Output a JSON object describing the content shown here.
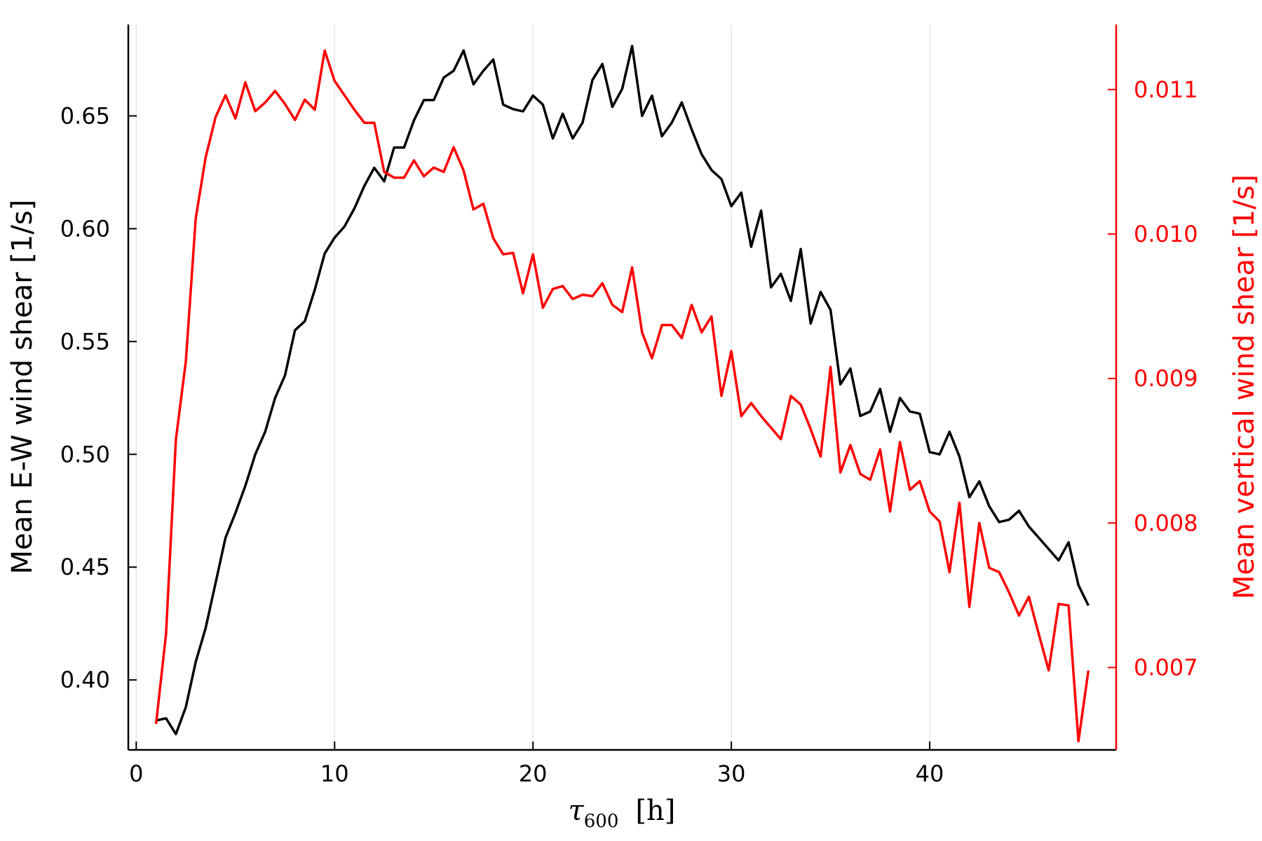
{
  "chart_data": {
    "type": "line",
    "title": "",
    "xlabel": {
      "symbol": "τ",
      "subscript": "600",
      "unit": "[h]"
    },
    "ylabel_left": "Mean E-W wind shear [1/s]",
    "ylabel_right": "Mean vertical wind shear [1/s]",
    "xlim": [
      -0.4,
      49.4
    ],
    "ylim_left": [
      0.369,
      0.6905
    ],
    "ylim_right": [
      0.00643,
      0.01145
    ],
    "xticks": [
      0,
      10,
      20,
      30,
      40
    ],
    "xtick_labels": [
      "0",
      "10",
      "20",
      "30",
      "40"
    ],
    "yticks_left": [
      0.4,
      0.45,
      0.5,
      0.55,
      0.6,
      0.65
    ],
    "ytick_labels_left": [
      "0.40",
      "0.45",
      "0.50",
      "0.55",
      "0.60",
      "0.65"
    ],
    "yticks_right": [
      0.007,
      0.008,
      0.009,
      0.01,
      0.011
    ],
    "ytick_labels_right": [
      "0.007",
      "0.008",
      "0.009",
      "0.010",
      "0.011"
    ],
    "grid": true,
    "colors": {
      "left_series": "#000000",
      "right_series": "#ff0000",
      "grid": "#e6e6e6",
      "axis_left": "#000000",
      "axis_right": "#ff0000"
    },
    "series": [
      {
        "axis": "left",
        "color": "#000000",
        "x": [
          1,
          1.5,
          2,
          2.5,
          3,
          3.5,
          4,
          4.5,
          5,
          5.5,
          6,
          6.5,
          7,
          7.5,
          8,
          8.5,
          9,
          9.5,
          10,
          10.5,
          11,
          11.5,
          12,
          12.5,
          13,
          13.5,
          14,
          14.5,
          15,
          15.5,
          16,
          16.5,
          17,
          17.5,
          18,
          18.5,
          19,
          19.5,
          20,
          20.5,
          21,
          21.5,
          22,
          22.5,
          23,
          23.5,
          24,
          24.5,
          25,
          25.5,
          26,
          26.5,
          27,
          27.5,
          28,
          28.5,
          29,
          29.5,
          30,
          30.5,
          31,
          31.5,
          32,
          32.5,
          33,
          33.5,
          34,
          34.5,
          35,
          35.5,
          36,
          36.5,
          37,
          37.5,
          38,
          38.5,
          39,
          39.5,
          40,
          40.5,
          41,
          41.5,
          42,
          42.5,
          43,
          43.5,
          44,
          44.5,
          45,
          45.5,
          46,
          46.5,
          47,
          47.5,
          48
        ],
        "values": [
          0.382,
          0.383,
          0.376,
          0.388,
          0.408,
          0.423,
          0.443,
          0.463,
          0.474,
          0.486,
          0.5,
          0.51,
          0.525,
          0.535,
          0.555,
          0.559,
          0.573,
          0.589,
          0.596,
          0.601,
          0.609,
          0.619,
          0.627,
          0.621,
          0.636,
          0.636,
          0.648,
          0.657,
          0.657,
          0.667,
          0.67,
          0.679,
          0.664,
          0.67,
          0.675,
          0.655,
          0.653,
          0.652,
          0.659,
          0.655,
          0.64,
          0.651,
          0.64,
          0.647,
          0.666,
          0.673,
          0.654,
          0.662,
          0.681,
          0.65,
          0.659,
          0.641,
          0.647,
          0.656,
          0.644,
          0.633,
          0.626,
          0.622,
          0.61,
          0.616,
          0.592,
          0.608,
          0.574,
          0.58,
          0.568,
          0.591,
          0.558,
          0.572,
          0.564,
          0.531,
          0.538,
          0.517,
          0.519,
          0.529,
          0.51,
          0.525,
          0.519,
          0.518,
          0.501,
          0.5,
          0.51,
          0.499,
          0.481,
          0.488,
          0.477,
          0.47,
          0.471,
          0.475,
          0.468,
          0.463,
          0.458,
          0.453,
          0.461,
          0.442,
          0.433
        ]
      },
      {
        "axis": "right",
        "color": "#ff0000",
        "x": [
          1,
          1.5,
          2,
          2.5,
          3,
          3.5,
          4,
          4.5,
          5,
          5.5,
          6,
          6.5,
          7,
          7.5,
          8,
          8.5,
          9,
          9.5,
          10,
          10.5,
          11,
          11.5,
          12,
          12.5,
          13,
          13.5,
          14,
          14.5,
          15,
          15.5,
          16,
          16.5,
          17,
          17.5,
          18,
          18.5,
          19,
          19.5,
          20,
          20.5,
          21,
          21.5,
          22,
          22.5,
          23,
          23.5,
          24,
          24.5,
          25,
          25.5,
          26,
          26.5,
          27,
          27.5,
          28,
          28.5,
          29,
          29.5,
          30,
          30.5,
          31,
          31.5,
          32,
          32.5,
          33,
          33.5,
          34,
          34.5,
          35,
          35.5,
          36,
          36.5,
          37,
          37.5,
          38,
          38.5,
          39,
          39.5,
          40,
          40.5,
          41,
          41.5,
          42,
          42.5,
          43,
          43.5,
          44,
          44.5,
          45,
          45.5,
          46,
          46.5,
          47,
          47.5,
          48
        ],
        "values": [
          0.00661,
          0.00723,
          0.00858,
          0.00912,
          0.01011,
          0.01053,
          0.01081,
          0.01096,
          0.0108,
          0.01105,
          0.01085,
          0.01091,
          0.01099,
          0.0109,
          0.01079,
          0.01093,
          0.01086,
          0.01127,
          0.01106,
          0.01096,
          0.01086,
          0.01077,
          0.01077,
          0.01043,
          0.01039,
          0.01039,
          0.01051,
          0.0104,
          0.01046,
          0.01043,
          0.0106,
          0.01044,
          0.01017,
          0.01021,
          0.00997,
          0.00986,
          0.00987,
          0.00959,
          0.00986,
          0.00949,
          0.00962,
          0.00964,
          0.00955,
          0.00958,
          0.00957,
          0.00966,
          0.00951,
          0.00946,
          0.00977,
          0.00932,
          0.00914,
          0.00937,
          0.00937,
          0.00928,
          0.00951,
          0.00932,
          0.00943,
          0.00888,
          0.00919,
          0.00874,
          0.00883,
          0.00874,
          0.00866,
          0.00858,
          0.00888,
          0.00882,
          0.00865,
          0.00846,
          0.00908,
          0.00835,
          0.00854,
          0.00834,
          0.0083,
          0.00851,
          0.00808,
          0.00856,
          0.00823,
          0.00829,
          0.00808,
          0.00801,
          0.00766,
          0.00814,
          0.00742,
          0.008,
          0.00769,
          0.00766,
          0.00752,
          0.00736,
          0.00749,
          0.00723,
          0.00698,
          0.00744,
          0.00743,
          0.00649,
          0.00698
        ]
      }
    ]
  }
}
